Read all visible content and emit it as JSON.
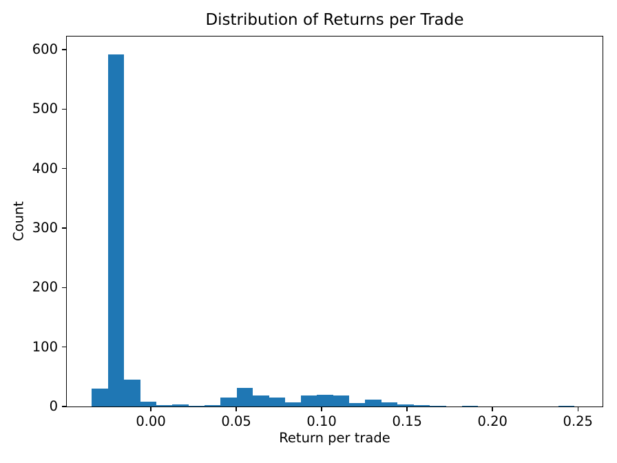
{
  "figure": {
    "background_color": "#ffffff",
    "text_color": "#000000",
    "spine_color": "#000000"
  },
  "chart_data": {
    "type": "bar",
    "subtype": "histogram",
    "title": "Distribution of Returns per Trade",
    "xlabel": "Return per trade",
    "ylabel": "Count",
    "bar_color": "#1f77b4",
    "grid": false,
    "legend": null,
    "xlim": [
      -0.0492,
      0.2644
    ],
    "ylim": [
      0,
      622
    ],
    "x_ticks": [
      0.0,
      0.05,
      0.1,
      0.15,
      0.2,
      0.25
    ],
    "x_tick_labels": [
      "0.00",
      "0.05",
      "0.10",
      "0.15",
      "0.20",
      "0.25"
    ],
    "y_ticks": [
      0,
      100,
      200,
      300,
      400,
      500,
      600
    ],
    "y_tick_labels": [
      "0",
      "100",
      "200",
      "300",
      "400",
      "500",
      "600"
    ],
    "bin_edges": [
      -0.03452,
      -0.02511,
      -0.01569,
      -0.00628,
      0.00314,
      0.01255,
      0.02197,
      0.03138,
      0.04079,
      0.05021,
      0.05962,
      0.06904,
      0.07845,
      0.08787,
      0.09728,
      0.10669,
      0.11611,
      0.12552,
      0.13494,
      0.14435,
      0.15377,
      0.16318,
      0.17259,
      0.18201,
      0.19142,
      0.20084,
      0.21025,
      0.21967,
      0.22908,
      0.23849,
      0.24791
    ],
    "counts": [
      30,
      592,
      45,
      8,
      2,
      4,
      1,
      2,
      15,
      31,
      19,
      15,
      7,
      18,
      20,
      19,
      6,
      12,
      7,
      3,
      2,
      1,
      0,
      1,
      0,
      0,
      0,
      0,
      0,
      1
    ]
  }
}
